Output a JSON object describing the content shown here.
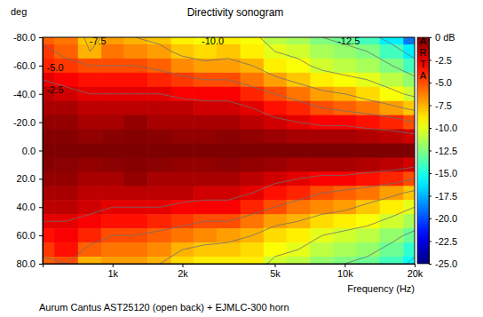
{
  "chart_data": {
    "type": "heatmap",
    "title": "Directivity sonogram",
    "x_label": "Frequency (Hz)",
    "y_label": "deg",
    "caption": "Aurum Cantus AST25120 (open back) + EJMLC-300 horn",
    "logo": "ARTA",
    "log": "x",
    "grid": false,
    "x": [
      500,
      630,
      800,
      1000,
      1250,
      1600,
      2000,
      2500,
      3150,
      4000,
      5000,
      6300,
      8000,
      10000,
      12500,
      16000,
      20000
    ],
    "y": [
      -80,
      -70,
      -60,
      -50,
      -40,
      -30,
      -20,
      -10,
      0,
      10,
      20,
      30,
      40,
      50,
      60,
      70,
      80
    ],
    "cells": [
      [
        -5.5,
        -6,
        -8,
        -7,
        -7.5,
        -8,
        -9,
        -9.5,
        -9,
        -9.5,
        -11,
        -11.5,
        -12.5,
        -13,
        -14,
        -16,
        -19
      ],
      [
        -4.5,
        -5.5,
        -7.5,
        -6,
        -6.5,
        -7,
        -8,
        -8.5,
        -8,
        -9,
        -10,
        -10.5,
        -11.5,
        -12,
        -12.5,
        -14,
        -16
      ],
      [
        -4,
        -4.5,
        -5,
        -5,
        -5,
        -5.5,
        -6.5,
        -7,
        -7,
        -7.5,
        -9,
        -9.5,
        -10.5,
        -11,
        -11.5,
        -12.5,
        -14
      ],
      [
        -2.5,
        -3,
        -3.5,
        -3.5,
        -3.5,
        -4,
        -4.5,
        -5,
        -5,
        -6,
        -7,
        -8,
        -9,
        -9.5,
        -10,
        -11,
        -12
      ],
      [
        -1.5,
        -2,
        -2.5,
        -2.5,
        -2.5,
        -2.5,
        -3,
        -3,
        -3,
        -4,
        -5,
        -6,
        -7,
        -7.5,
        -8.5,
        -9.5,
        -10.5
      ],
      [
        -1,
        -1,
        -1.5,
        -1.5,
        -1.5,
        -1.5,
        -1.5,
        -2,
        -2,
        -2.5,
        -3.5,
        -4,
        -5,
        -5.5,
        -6,
        -7,
        -8
      ],
      [
        -0.5,
        -0.5,
        -1,
        -1,
        -0.5,
        -1,
        -1,
        -1,
        -1,
        -1.5,
        -2,
        -2.5,
        -3,
        -3,
        -3.5,
        -4,
        -5
      ],
      [
        -0.2,
        -0.2,
        -0.5,
        -0.3,
        -0.2,
        -0.3,
        -0.5,
        -0.5,
        -0.3,
        -0.5,
        -0.7,
        -1,
        -1,
        -1,
        -1.2,
        -1.5,
        -2
      ],
      [
        0,
        0,
        0,
        0,
        0,
        0,
        0,
        0,
        0,
        0,
        0,
        0,
        0,
        0,
        0,
        0,
        0
      ],
      [
        -0.2,
        -0.3,
        -0.5,
        -0.3,
        -0.2,
        -0.3,
        -0.5,
        -0.5,
        -0.3,
        -0.5,
        -0.7,
        -1,
        -1,
        -1,
        -1.2,
        -1.5,
        -2
      ],
      [
        -0.5,
        -0.5,
        -1,
        -1,
        -0.5,
        -1,
        -1,
        -1,
        -1,
        -1.5,
        -2,
        -2.5,
        -3,
        -3,
        -3.5,
        -4,
        -5
      ],
      [
        -1,
        -1,
        -1.5,
        -1.5,
        -1.5,
        -1.5,
        -1.5,
        -2,
        -2,
        -2.5,
        -3.5,
        -4,
        -5,
        -5.5,
        -6,
        -7,
        -8
      ],
      [
        -1.5,
        -1.5,
        -2,
        -2.5,
        -2.5,
        -2.5,
        -3,
        -3,
        -3,
        -4,
        -5,
        -6,
        -6.5,
        -7,
        -8,
        -9,
        -10
      ],
      [
        -2.5,
        -2.5,
        -3,
        -3.5,
        -3.5,
        -4,
        -4.5,
        -5,
        -5,
        -6,
        -7,
        -7.5,
        -8.5,
        -9,
        -9.5,
        -10.5,
        -11.5
      ],
      [
        -3.5,
        -3,
        -4,
        -5,
        -5,
        -5.5,
        -6,
        -6.5,
        -7,
        -7.5,
        -8.5,
        -9,
        -10,
        -10.5,
        -11,
        -12,
        -13
      ],
      [
        -4.5,
        -3.5,
        -5.5,
        -6,
        -6,
        -6.5,
        -7.5,
        -8,
        -8,
        -8.5,
        -9.5,
        -10,
        -11,
        -11.5,
        -12,
        -13,
        -14.5
      ],
      [
        -5.5,
        -5,
        -7.5,
        -7,
        -7,
        -7.5,
        -8.5,
        -9,
        -9,
        -9,
        -10.5,
        -11,
        -12,
        -12.5,
        -13,
        -14,
        -15.5
      ]
    ],
    "xlim": [
      500,
      20000
    ],
    "ylim": [
      -80,
      80
    ],
    "xticks": [
      {
        "value": 1000,
        "label": "1k"
      },
      {
        "value": 2000,
        "label": "2k"
      },
      {
        "value": 5000,
        "label": "5k"
      },
      {
        "value": 10000,
        "label": "10k"
      },
      {
        "value": 20000,
        "label": "20k"
      }
    ],
    "yticks": [
      {
        "value": -80,
        "label": "-80.0"
      },
      {
        "value": -60,
        "label": "-60.0"
      },
      {
        "value": -40,
        "label": "-40.0"
      },
      {
        "value": -20,
        "label": "-20.0"
      },
      {
        "value": 0,
        "label": "0.0"
      },
      {
        "value": 20,
        "label": "20.0"
      },
      {
        "value": 40,
        "label": "40.0"
      },
      {
        "value": 60,
        "label": "60.0"
      },
      {
        "value": 80,
        "label": "80.0"
      }
    ],
    "colorbar": {
      "range": [
        -25,
        0
      ],
      "ticks": [
        {
          "value": 0,
          "label": "0 dB"
        },
        -2.5,
        {
          "value": -5,
          "label": "-5.0"
        },
        -7.5,
        {
          "value": -10,
          "label": "-10.0"
        },
        -12.5,
        {
          "value": -15,
          "label": "-15.0"
        },
        -17.5,
        {
          "value": -20,
          "label": "-20.0"
        },
        -22.5,
        {
          "value": -25,
          "label": "-25.0"
        }
      ]
    },
    "contours": [
      -2.5,
      -5,
      -7.5,
      -10,
      -12.5,
      -15,
      -17.5,
      -20,
      -22.5,
      -25
    ],
    "annotations": [
      {
        "text": "-7.5",
        "x": 865,
        "y": -77
      },
      {
        "text": "-10.0",
        "x": 2700,
        "y": -77
      },
      {
        "text": "-12.5",
        "x": 10400,
        "y": -77
      },
      {
        "text": "-5.0",
        "x": 566,
        "y": -58
      },
      {
        "text": "-2.5",
        "x": 566,
        "y": -42
      }
    ]
  }
}
